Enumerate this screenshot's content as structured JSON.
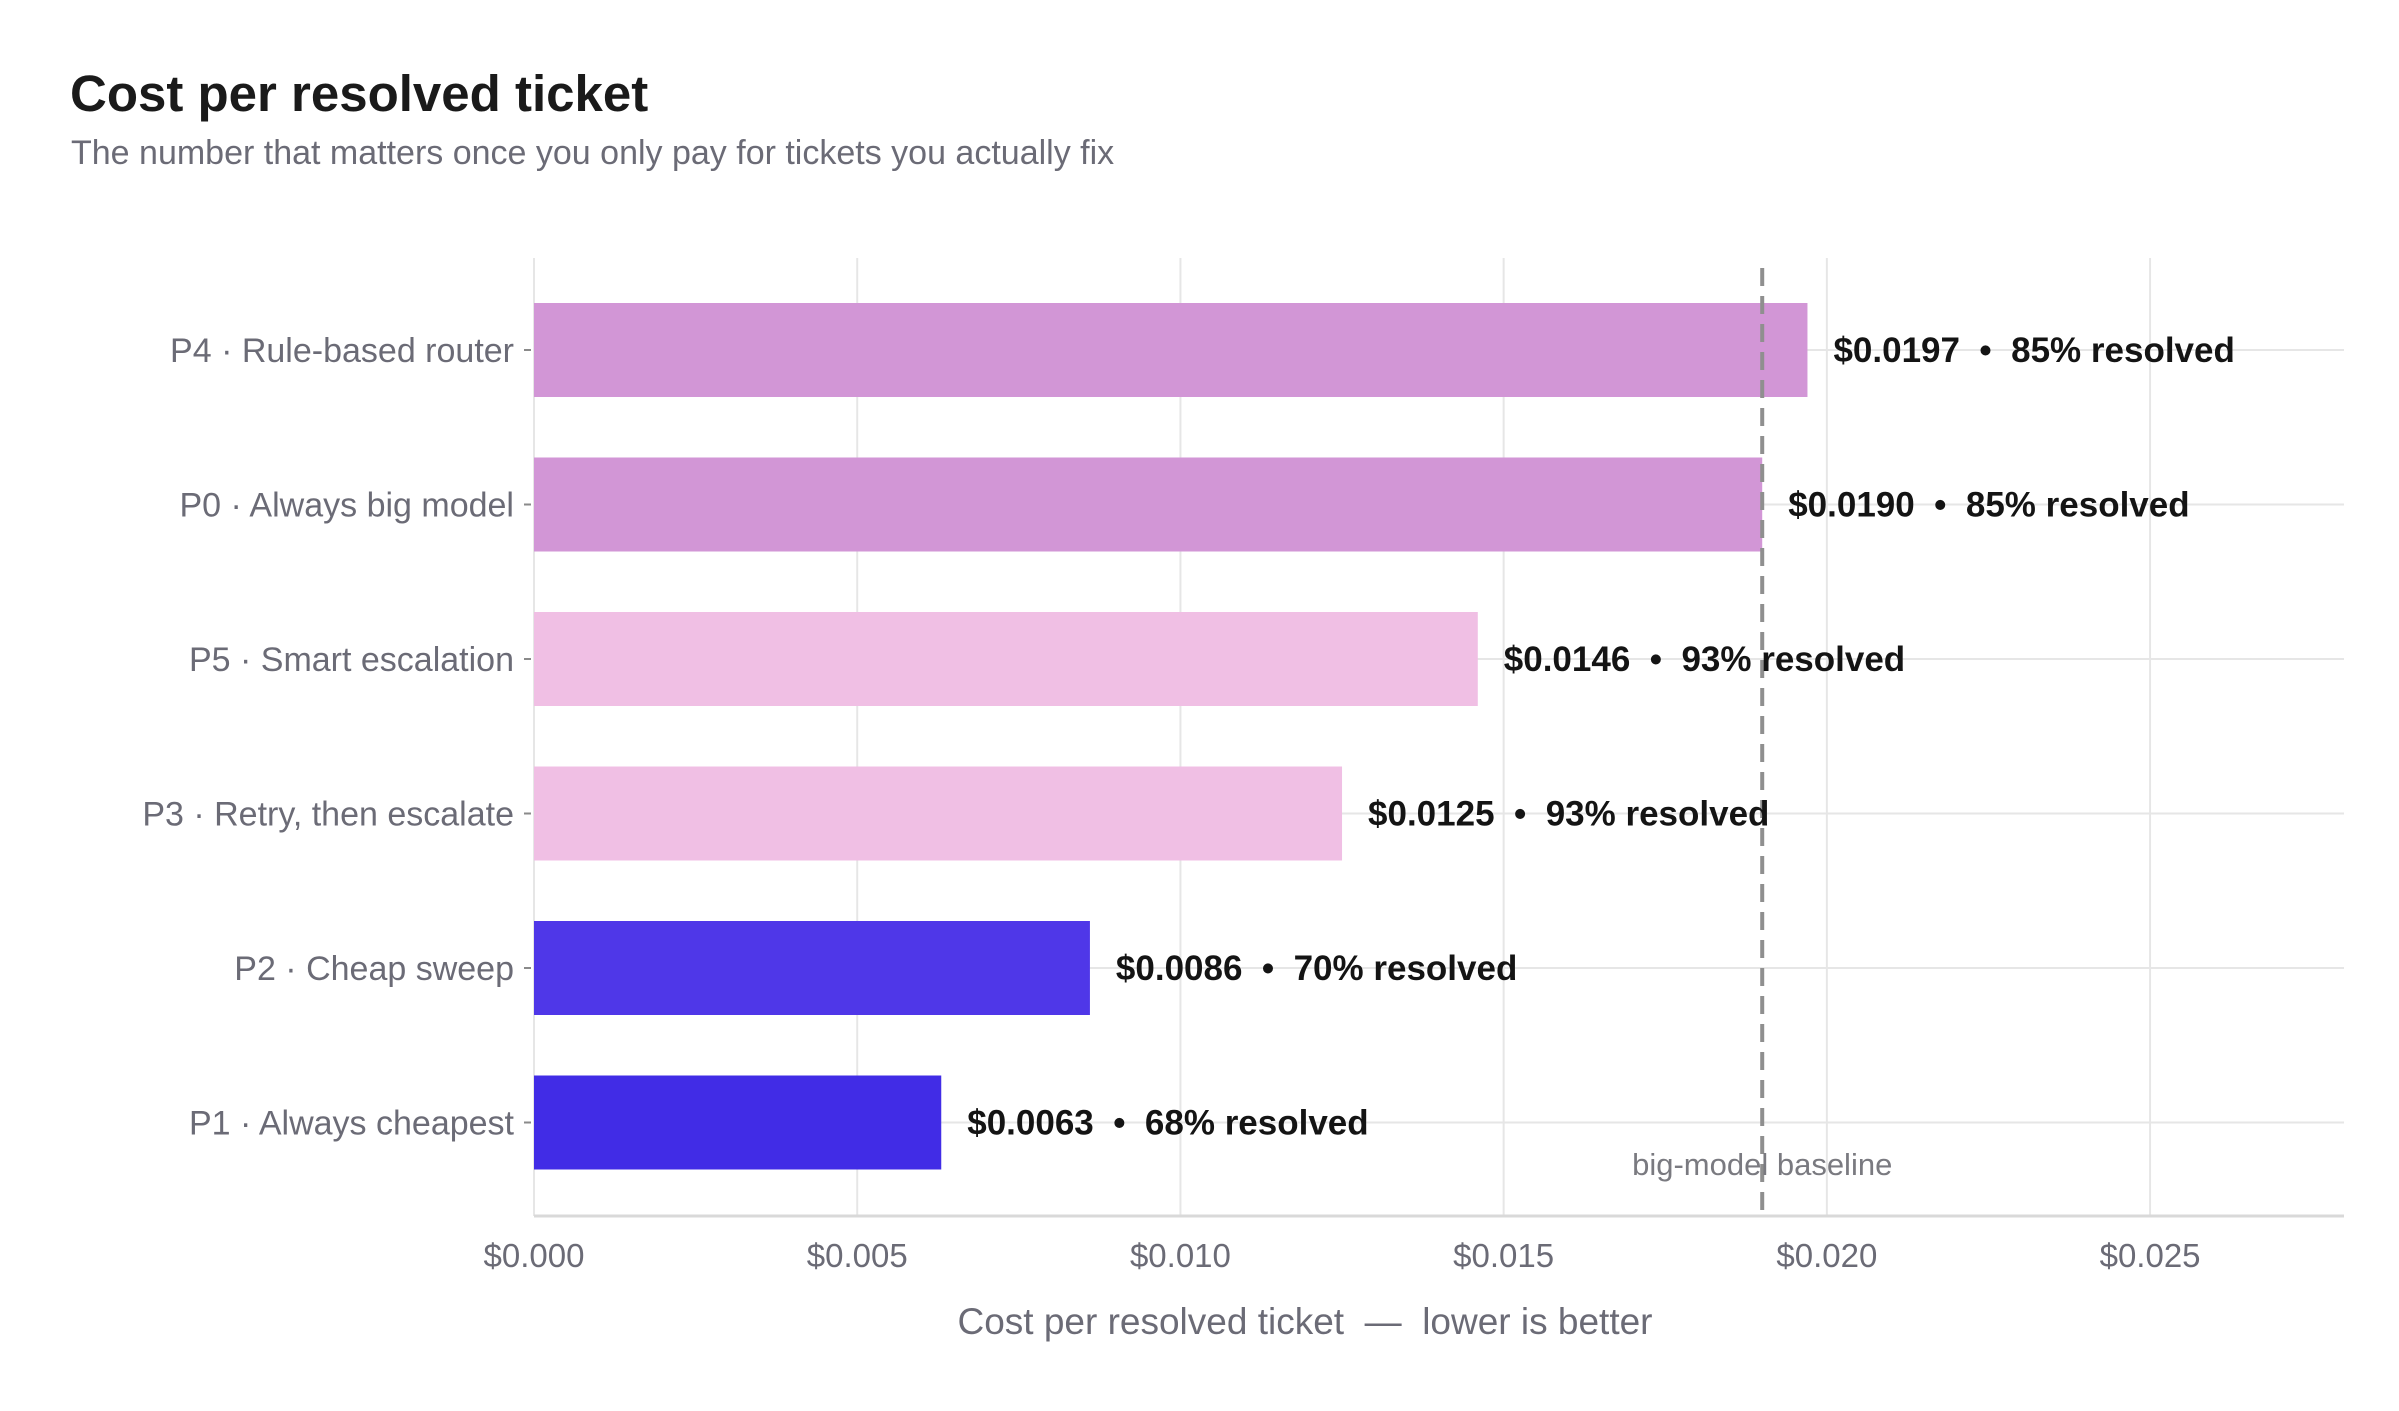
{
  "chart_data": {
    "type": "bar",
    "orientation": "horizontal",
    "title": "Cost per resolved ticket",
    "subtitle": "The number that matters once you only pay for tickets you actually fix",
    "xlabel": "Cost per resolved ticket  —  lower is better",
    "ylabel": "",
    "xlim": [
      0,
      0.028
    ],
    "x_ticks": [
      0,
      0.005,
      0.01,
      0.015,
      0.02,
      0.025
    ],
    "x_tick_labels": [
      "$0.000",
      "$0.005",
      "$0.010",
      "$0.015",
      "$0.020",
      "$0.025"
    ],
    "grid": true,
    "legend": "none",
    "categories": [
      "P4 · Rule-based router",
      "P0 · Always big model",
      "P5 · Smart escalation",
      "P3 · Retry, then escalate",
      "P2 · Cheap sweep",
      "P1 · Always cheapest"
    ],
    "values": [
      0.0197,
      0.019,
      0.0146,
      0.0125,
      0.0086,
      0.0063
    ],
    "data_labels": [
      "$0.0197  •  85% resolved",
      "$0.0190  •  85% resolved",
      "$0.0146  •  93% resolved",
      "$0.0125  •  93% resolved",
      "$0.0086  •  70% resolved",
      "$0.0063  •  68% resolved"
    ],
    "resolved_pct": [
      85,
      85,
      93,
      93,
      70,
      68
    ],
    "bar_colors": [
      "#d296d6",
      "#d296d6",
      "#f0bfe4",
      "#f0bfe4",
      "#4f37e8",
      "#412ce6"
    ],
    "reference_line": {
      "value": 0.019,
      "label": "big-model baseline",
      "style": "dashed",
      "color": "#8f8f8f"
    }
  }
}
